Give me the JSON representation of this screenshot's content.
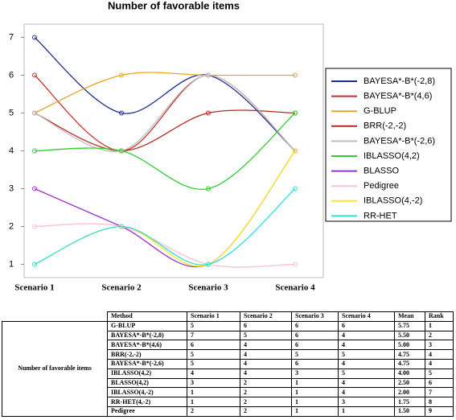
{
  "chart_data": {
    "type": "line",
    "title": "Number of favorable items",
    "categories": [
      "Scenario 1",
      "Scenario 2",
      "Scenario 3",
      "Scenario 4"
    ],
    "series": [
      {
        "name": "BAYESA*-B*(-2,8)",
        "color": "#1f2f8f",
        "values": [
          7,
          5,
          6,
          4
        ]
      },
      {
        "name": "BAYESA*-B*(4,6)",
        "color": "#c8302c",
        "values": [
          6,
          4,
          6,
          4
        ]
      },
      {
        "name": "G-BLUP",
        "color": "#e8a424",
        "values": [
          5,
          6,
          6,
          6
        ]
      },
      {
        "name": "BRR(-2,-2)",
        "color": "#b8281e",
        "values": [
          5,
          4,
          5,
          5
        ]
      },
      {
        "name": "BAYESA*-B*(-2,6)",
        "color": "#bdbdbd",
        "values": [
          5,
          4,
          6,
          4
        ]
      },
      {
        "name": "IBLASSO(4,2)",
        "color": "#33cc33",
        "values": [
          4,
          4,
          3,
          5
        ]
      },
      {
        "name": "BLASSO",
        "color": "#9933cc",
        "values": [
          3,
          2,
          1,
          4
        ]
      },
      {
        "name": "Pedigree",
        "color": "#ffbfcf",
        "values": [
          2,
          2,
          1,
          1
        ]
      },
      {
        "name": "IBLASSO(4,-2)",
        "color": "#ffe81a",
        "values": [
          1,
          2,
          1,
          4
        ]
      },
      {
        "name": "RR-HET",
        "color": "#33dddd",
        "values": [
          1,
          2,
          1,
          3
        ]
      }
    ],
    "ylim": [
      0.65,
      7.35
    ],
    "yticks": [
      1,
      2,
      3,
      4,
      5,
      6,
      7
    ],
    "legend": "right"
  },
  "table": {
    "row_header": "Number of favorable items",
    "header": [
      "Method",
      "Scenario 1",
      "Scenario 2",
      "Scenario 3",
      "Scenario 4",
      "Mean",
      "Rank"
    ],
    "rows": [
      [
        "G-BLUP",
        "5",
        "6",
        "6",
        "6",
        "5.75",
        "1"
      ],
      [
        "BAYESA*-B*(-2,8)",
        "7",
        "5",
        "6",
        "4",
        "5.50",
        "2"
      ],
      [
        "BAYESA*-B*(4,6)",
        "6",
        "4",
        "6",
        "4",
        "5.00",
        "3"
      ],
      [
        "BRR(-2,-2)",
        "5",
        "4",
        "5",
        "5",
        "4.75",
        "4"
      ],
      [
        "BAYESA*-B*(-2,6)",
        "5",
        "4",
        "6",
        "4",
        "4.75",
        "4"
      ],
      [
        "IBLASSO(4,2)",
        "4",
        "4",
        "3",
        "5",
        "4.00",
        "5"
      ],
      [
        "BLASSO(4,2)",
        "3",
        "2",
        "1",
        "4",
        "2.50",
        "6"
      ],
      [
        "IBLASSO(4,-2)",
        "1",
        "2",
        "1",
        "4",
        "2.00",
        "7"
      ],
      [
        "RR-HET(4,-2)",
        "1",
        "2",
        "1",
        "3",
        "1.75",
        "8"
      ],
      [
        "Pedigree",
        "2",
        "2",
        "1",
        "1",
        "1.50",
        "9"
      ]
    ]
  }
}
